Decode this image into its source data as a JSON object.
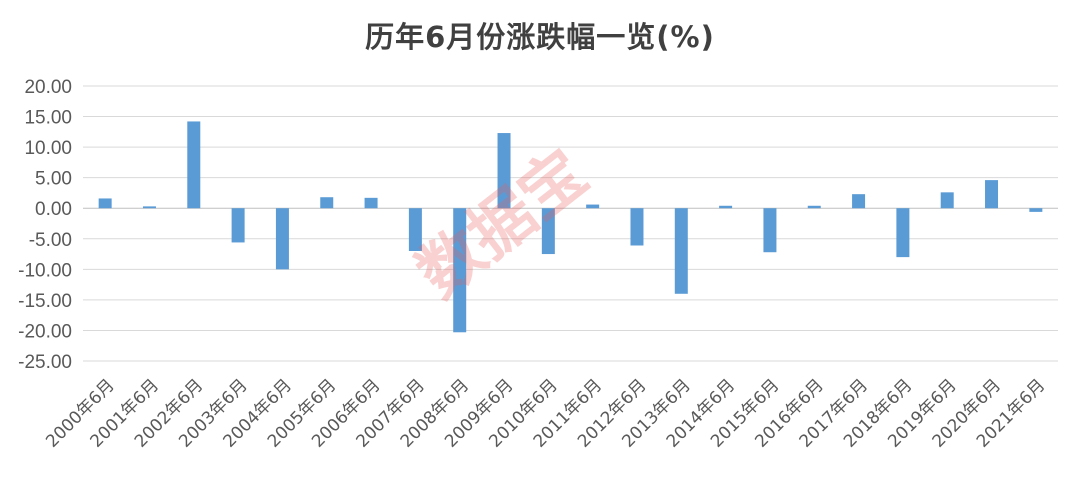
{
  "watermark": "数据宝",
  "colors": {
    "bar": "#5B9BD5",
    "grid": "#D9D9D9",
    "axis": "#BFBFBF"
  },
  "chart_data": {
    "type": "bar",
    "title": "历年6月份涨跌幅一览(%)",
    "xlabel": "",
    "ylabel": "",
    "ylim": [
      -25,
      20
    ],
    "ytick_step": 5,
    "ytick_labels": [
      "20.00",
      "15.00",
      "10.00",
      "5.00",
      "0.00",
      "-5.00",
      "-10.00",
      "-15.00",
      "-20.00",
      "-25.00"
    ],
    "grid": true,
    "categories": [
      "2000年6月",
      "2001年6月",
      "2002年6月",
      "2003年6月",
      "2004年6月",
      "2005年6月",
      "2006年6月",
      "2007年6月",
      "2008年6月",
      "2009年6月",
      "2010年6月",
      "2011年6月",
      "2012年6月",
      "2013年6月",
      "2014年6月",
      "2015年6月",
      "2016年6月",
      "2017年6月",
      "2018年6月",
      "2019年6月",
      "2020年6月",
      "2021年6月"
    ],
    "values": [
      1.6,
      0.3,
      14.2,
      -5.6,
      -10.0,
      1.8,
      1.7,
      -7.0,
      -20.3,
      12.3,
      -7.5,
      0.6,
      -6.1,
      -14.0,
      0.4,
      -7.2,
      0.4,
      2.3,
      -8.0,
      2.6,
      4.6,
      -0.6
    ]
  }
}
